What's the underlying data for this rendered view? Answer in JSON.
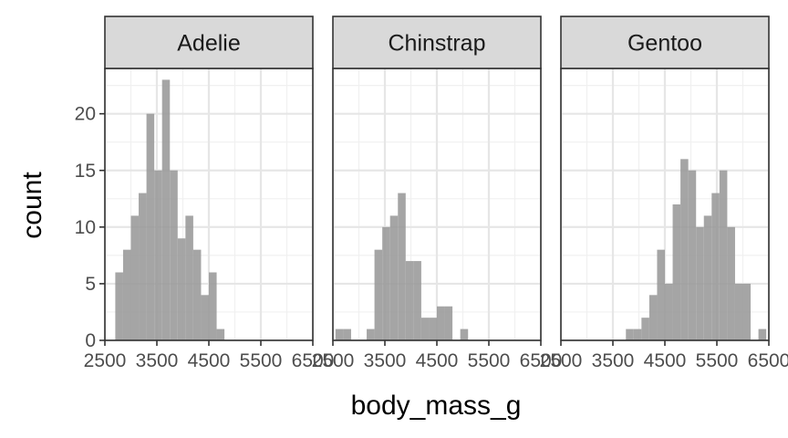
{
  "chart_data": {
    "type": "bar",
    "xlabel": "body_mass_g",
    "ylabel": "count",
    "xlim": [
      2500,
      6500
    ],
    "ylim": [
      0,
      24
    ],
    "x_ticks": [
      "2500",
      "3500",
      "4500",
      "5500",
      "6500"
    ],
    "y_ticks": [
      "0",
      "5",
      "10",
      "15",
      "20"
    ],
    "bin_width": 150,
    "grid": true,
    "bar_color": "#999999",
    "strip_fill": "#d9d9d9",
    "panels": [
      {
        "name": "Adelie",
        "bins": [
          {
            "x": 2775,
            "count": 6
          },
          {
            "x": 2925,
            "count": 8
          },
          {
            "x": 3075,
            "count": 11
          },
          {
            "x": 3225,
            "count": 13
          },
          {
            "x": 3375,
            "count": 20
          },
          {
            "x": 3525,
            "count": 15
          },
          {
            "x": 3675,
            "count": 23
          },
          {
            "x": 3825,
            "count": 15
          },
          {
            "x": 3975,
            "count": 9
          },
          {
            "x": 4125,
            "count": 11
          },
          {
            "x": 4275,
            "count": 8
          },
          {
            "x": 4425,
            "count": 4
          },
          {
            "x": 4575,
            "count": 6
          },
          {
            "x": 4725,
            "count": 1
          }
        ]
      },
      {
        "name": "Chinstrap",
        "bins": [
          {
            "x": 2625,
            "count": 1
          },
          {
            "x": 2775,
            "count": 1
          },
          {
            "x": 3225,
            "count": 1
          },
          {
            "x": 3375,
            "count": 8
          },
          {
            "x": 3525,
            "count": 10
          },
          {
            "x": 3675,
            "count": 11
          },
          {
            "x": 3825,
            "count": 13
          },
          {
            "x": 3975,
            "count": 7
          },
          {
            "x": 4125,
            "count": 7
          },
          {
            "x": 4275,
            "count": 2
          },
          {
            "x": 4425,
            "count": 2
          },
          {
            "x": 4575,
            "count": 3
          },
          {
            "x": 4725,
            "count": 3
          },
          {
            "x": 5025,
            "count": 1
          }
        ]
      },
      {
        "name": "Gentoo",
        "bins": [
          {
            "x": 3825,
            "count": 1
          },
          {
            "x": 3975,
            "count": 1
          },
          {
            "x": 4125,
            "count": 2
          },
          {
            "x": 4275,
            "count": 4
          },
          {
            "x": 4425,
            "count": 8
          },
          {
            "x": 4575,
            "count": 5
          },
          {
            "x": 4725,
            "count": 12
          },
          {
            "x": 4875,
            "count": 16
          },
          {
            "x": 5025,
            "count": 15
          },
          {
            "x": 5175,
            "count": 10
          },
          {
            "x": 5325,
            "count": 11
          },
          {
            "x": 5475,
            "count": 13
          },
          {
            "x": 5625,
            "count": 15
          },
          {
            "x": 5775,
            "count": 10
          },
          {
            "x": 5925,
            "count": 5
          },
          {
            "x": 6075,
            "count": 5
          },
          {
            "x": 6225,
            "count": 0
          },
          {
            "x": 6375,
            "count": 1
          }
        ]
      }
    ]
  }
}
